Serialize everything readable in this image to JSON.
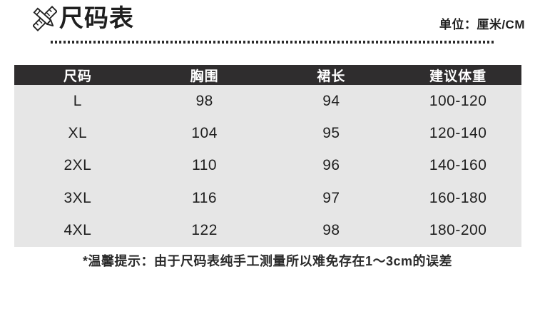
{
  "page": {
    "title": "尺码表",
    "unit_label": "单位：厘米/CM",
    "note": "*温馨提示：由于尺码表纯手工测量所以难免存在1～3cm的误差"
  },
  "icons": {
    "title_icon": "ruler-pencil-icon"
  },
  "size_table": {
    "headers": [
      "尺码",
      "胸围",
      "裙长",
      "建议体重"
    ],
    "rows": [
      [
        "L",
        "98",
        "94",
        "100-120"
      ],
      [
        "XL",
        "104",
        "95",
        "120-140"
      ],
      [
        "2XL",
        "110",
        "96",
        "140-160"
      ],
      [
        "3XL",
        "116",
        "97",
        "160-180"
      ],
      [
        "4XL",
        "122",
        "98",
        "180-200"
      ]
    ]
  },
  "colors": {
    "page_bg": "#ffffff",
    "header_bg": "#2f2d2e",
    "header_text": "#ffffff",
    "body_bg": "#e6e6e6",
    "text": "#1f1f1f",
    "dot": "#2b2b2b"
  }
}
